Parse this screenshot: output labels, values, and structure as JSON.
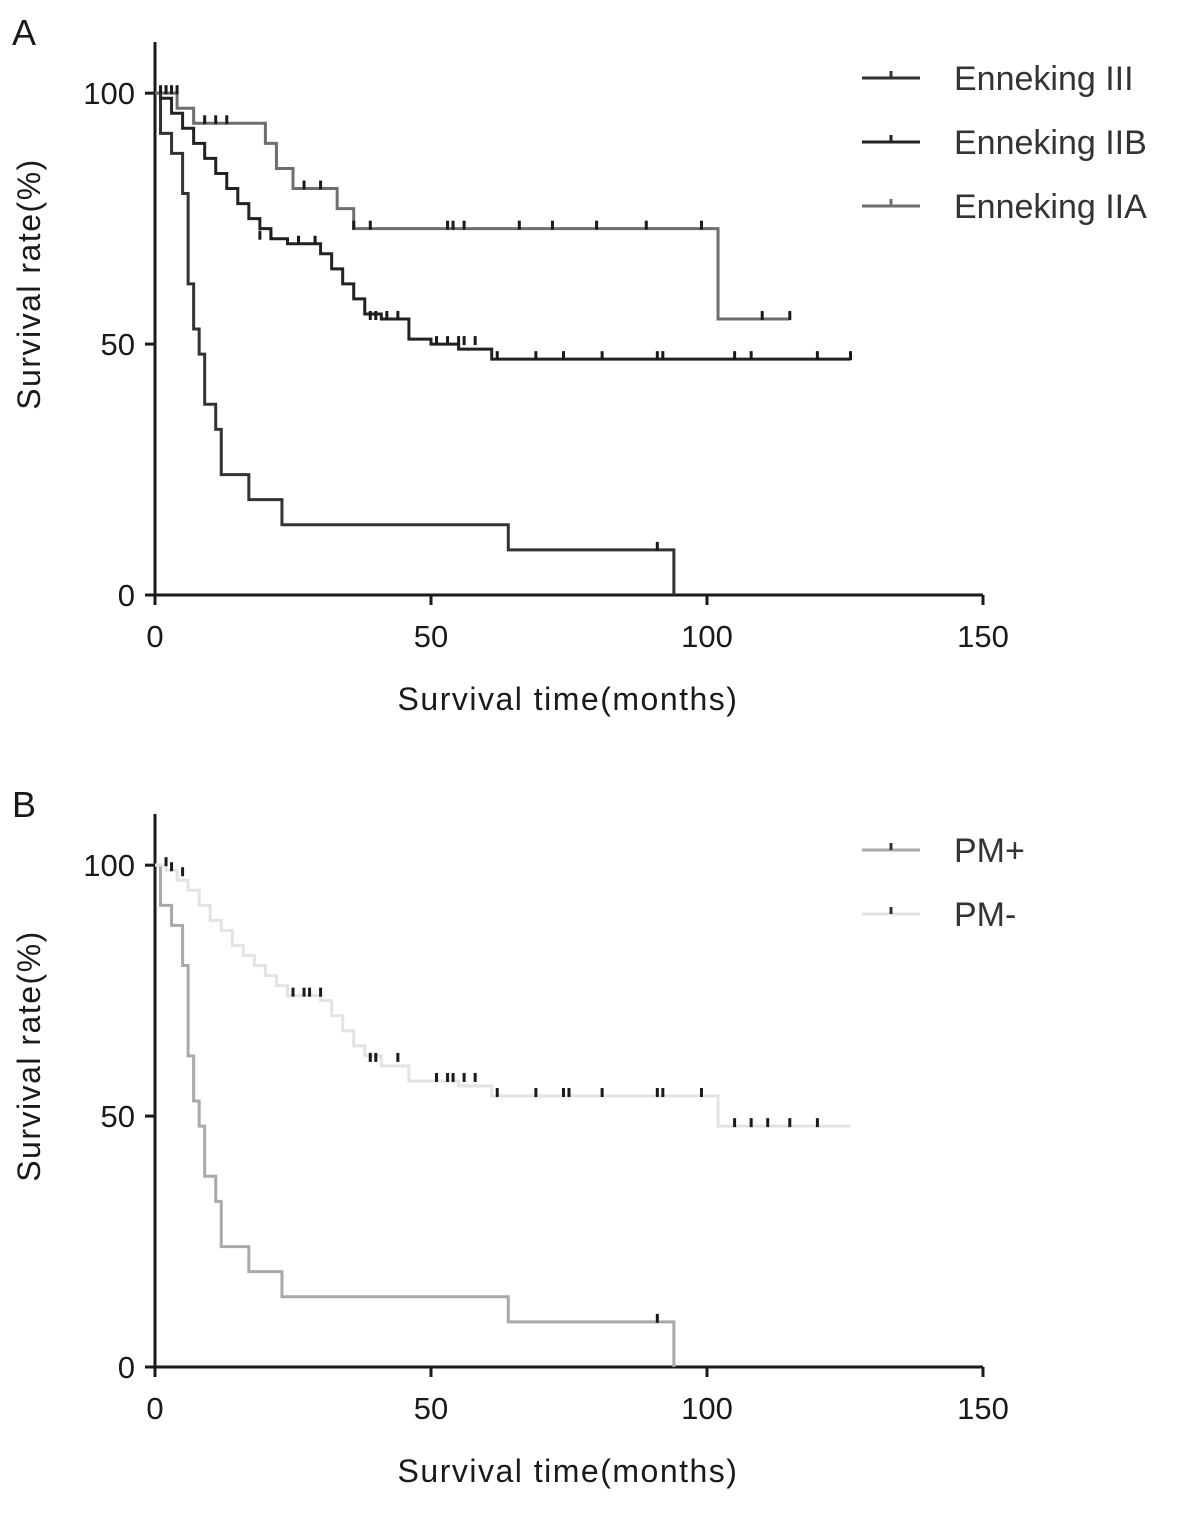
{
  "chart_data": [
    {
      "panel_label": "A",
      "type": "line",
      "subtype": "kaplan-meier",
      "xlabel": "Survival time(months)",
      "ylabel": "Survival rate(%)",
      "xlim": [
        0,
        150
      ],
      "ylim": [
        0,
        110
      ],
      "xticks": [
        0,
        50,
        100,
        150
      ],
      "yticks": [
        0,
        50,
        100
      ],
      "legend_position": "top-right",
      "series": [
        {
          "name": "Enneking III",
          "color": "#333333",
          "x": [
            0,
            1,
            3,
            5,
            6,
            7,
            8,
            9,
            11,
            12,
            17,
            23,
            64,
            94
          ],
          "y": [
            100,
            92,
            88,
            80,
            62,
            53,
            48,
            38,
            33,
            24,
            19,
            14,
            9,
            0
          ],
          "censored": [
            [
              91,
              9
            ]
          ]
        },
        {
          "name": "Enneking IIB",
          "color": "#222222",
          "x": [
            0,
            1,
            3,
            5,
            7,
            9,
            11,
            13,
            15,
            17,
            19,
            21,
            24,
            30,
            32,
            34,
            36,
            38,
            41,
            46,
            50,
            55,
            61,
            126
          ],
          "y": [
            100,
            99,
            96,
            93,
            90,
            87,
            84,
            81,
            78,
            75,
            73,
            71,
            70,
            68,
            65,
            62,
            59,
            56,
            55,
            51,
            50,
            49,
            47,
            47
          ],
          "censored": [
            [
              19,
              71
            ],
            [
              21,
              71
            ],
            [
              26,
              70
            ],
            [
              29,
              70
            ],
            [
              39,
              55
            ],
            [
              40,
              55
            ],
            [
              42,
              55
            ],
            [
              44,
              55
            ],
            [
              51,
              50
            ],
            [
              53,
              50
            ],
            [
              55,
              50
            ],
            [
              56,
              50
            ],
            [
              58,
              50
            ],
            [
              62,
              47
            ],
            [
              69,
              47
            ],
            [
              74,
              47
            ],
            [
              81,
              47
            ],
            [
              91,
              47
            ],
            [
              92,
              47
            ],
            [
              105,
              47
            ],
            [
              108,
              47
            ],
            [
              120,
              47
            ],
            [
              126,
              47
            ]
          ]
        },
        {
          "name": "Enneking IIA",
          "color": "#6e6e6e",
          "x": [
            0,
            4,
            7,
            20,
            22,
            25,
            33,
            36,
            102,
            115
          ],
          "y": [
            100,
            97,
            94,
            90,
            85,
            81,
            77,
            73,
            55,
            55
          ],
          "censored": [
            [
              1,
              100
            ],
            [
              2,
              100
            ],
            [
              3,
              100
            ],
            [
              4,
              100
            ],
            [
              9,
              94
            ],
            [
              11,
              94
            ],
            [
              13,
              94
            ],
            [
              27,
              81
            ],
            [
              30,
              81
            ],
            [
              36,
              73
            ],
            [
              39,
              73
            ],
            [
              53,
              73
            ],
            [
              54,
              73
            ],
            [
              56,
              73
            ],
            [
              66,
              73
            ],
            [
              72,
              73
            ],
            [
              80,
              73
            ],
            [
              89,
              73
            ],
            [
              99,
              73
            ],
            [
              110,
              55
            ],
            [
              115,
              55
            ]
          ]
        }
      ]
    },
    {
      "panel_label": "B",
      "type": "line",
      "subtype": "kaplan-meier",
      "xlabel": "Survival time(months)",
      "ylabel": "Survival rate(%)",
      "xlim": [
        0,
        150
      ],
      "ylim": [
        0,
        110
      ],
      "xticks": [
        0,
        50,
        100,
        150
      ],
      "yticks": [
        0,
        50,
        100
      ],
      "legend_position": "top-right",
      "series": [
        {
          "name": "PM+",
          "color": "#a9a9a9",
          "x": [
            0,
            1,
            3,
            5,
            6,
            7,
            8,
            9,
            11,
            12,
            17,
            23,
            64,
            94
          ],
          "y": [
            100,
            92,
            88,
            80,
            62,
            53,
            48,
            38,
            33,
            24,
            19,
            14,
            9,
            0
          ],
          "censored": [
            [
              91,
              9
            ]
          ]
        },
        {
          "name": "PM-",
          "color": "#e3e3e3",
          "x": [
            0,
            2,
            4,
            6,
            8,
            10,
            12,
            14,
            16,
            18,
            20,
            22,
            24,
            30,
            32,
            34,
            36,
            38,
            41,
            46,
            55,
            61,
            102,
            126
          ],
          "y": [
            100,
            99,
            97,
            95,
            92,
            89,
            87,
            84,
            82,
            80,
            78,
            76,
            74,
            73,
            70,
            67,
            64,
            62,
            60,
            57,
            56,
            54,
            48,
            48
          ],
          "censored": [
            [
              2,
              100
            ],
            [
              3,
              99
            ],
            [
              5,
              98
            ],
            [
              25,
              74
            ],
            [
              27,
              74
            ],
            [
              28,
              74
            ],
            [
              30,
              74
            ],
            [
              39,
              61
            ],
            [
              40,
              61
            ],
            [
              44,
              61
            ],
            [
              51,
              57
            ],
            [
              53,
              57
            ],
            [
              54,
              57
            ],
            [
              56,
              57
            ],
            [
              58,
              57
            ],
            [
              62,
              54
            ],
            [
              69,
              54
            ],
            [
              74,
              54
            ],
            [
              75,
              54
            ],
            [
              81,
              54
            ],
            [
              91,
              54
            ],
            [
              92,
              54
            ],
            [
              99,
              54
            ],
            [
              105,
              48
            ],
            [
              108,
              48
            ],
            [
              111,
              48
            ],
            [
              115,
              48
            ],
            [
              120,
              48
            ]
          ]
        }
      ]
    }
  ]
}
